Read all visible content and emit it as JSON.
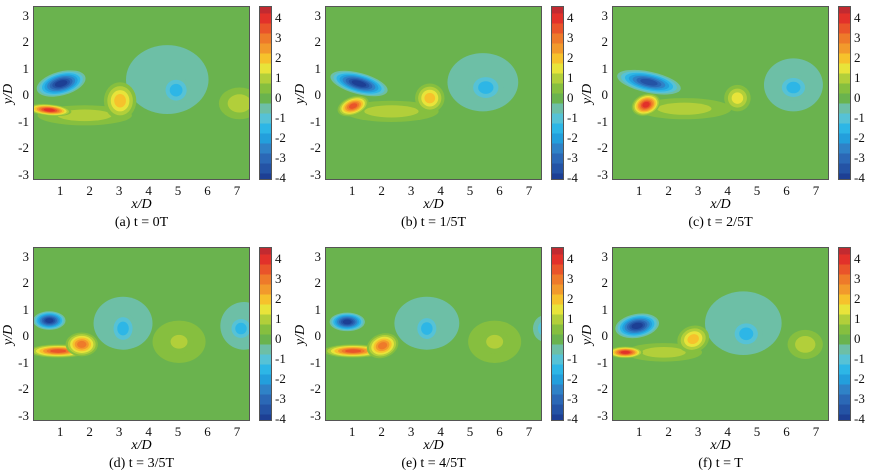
{
  "chart_data": [
    {
      "type": "heatmap",
      "caption": "(a) t = 0T",
      "xlabel": "x/D",
      "ylabel": "y/D",
      "vortices": [
        {
          "x": 4.6,
          "y": 0.6,
          "rx": 1.4,
          "ry": 1.3,
          "peak": -0.5,
          "rot": 0
        },
        {
          "x": 1.8,
          "y": -0.75,
          "rx": 1.6,
          "ry": 0.38,
          "peak": 1,
          "rot": 0
        },
        {
          "x": 1.0,
          "y": 0.45,
          "rx": 0.85,
          "ry": 0.45,
          "peak": -4,
          "rot": 15
        },
        {
          "x": 0.6,
          "y": -0.55,
          "rx": 0.75,
          "ry": 0.22,
          "peak": 4,
          "rot": -5
        },
        {
          "x": 3.0,
          "y": -0.2,
          "rx": 0.55,
          "ry": 0.7,
          "peak": 2,
          "rot": 0
        },
        {
          "x": 4.9,
          "y": 0.2,
          "rx": 0.5,
          "ry": 0.55,
          "peak": -1.5,
          "rot": 0
        },
        {
          "x": 7.05,
          "y": -0.3,
          "rx": 0.7,
          "ry": 0.6,
          "peak": 1,
          "rot": 0
        }
      ]
    },
    {
      "type": "heatmap",
      "caption": "(b) t = 1/5T",
      "xlabel": "x/D",
      "ylabel": "y/D",
      "vortices": [
        {
          "x": 5.4,
          "y": 0.5,
          "rx": 1.2,
          "ry": 1.1,
          "peak": -0.5,
          "rot": 0
        },
        {
          "x": 2.3,
          "y": -0.6,
          "rx": 1.6,
          "ry": 0.4,
          "peak": 1,
          "rot": 0
        },
        {
          "x": 1.2,
          "y": 0.45,
          "rx": 1.0,
          "ry": 0.4,
          "peak": -4,
          "rot": -15
        },
        {
          "x": 1.0,
          "y": -0.4,
          "rx": 0.55,
          "ry": 0.35,
          "peak": 3.5,
          "rot": 20
        },
        {
          "x": 3.6,
          "y": -0.1,
          "rx": 0.5,
          "ry": 0.55,
          "peak": 2,
          "rot": 0
        },
        {
          "x": 5.5,
          "y": 0.3,
          "rx": 0.6,
          "ry": 0.55,
          "peak": -1.5,
          "rot": 0
        }
      ]
    },
    {
      "type": "heatmap",
      "caption": "(c) t = 2/5T",
      "xlabel": "x/D",
      "ylabel": "y/D",
      "vortices": [
        {
          "x": 6.2,
          "y": 0.4,
          "rx": 1.0,
          "ry": 1.0,
          "peak": -0.5,
          "rot": 0
        },
        {
          "x": 2.5,
          "y": -0.5,
          "rx": 1.6,
          "ry": 0.4,
          "peak": 1,
          "rot": 0
        },
        {
          "x": 1.3,
          "y": 0.5,
          "rx": 1.1,
          "ry": 0.4,
          "peak": -3.5,
          "rot": -12
        },
        {
          "x": 1.2,
          "y": -0.35,
          "rx": 0.5,
          "ry": 0.4,
          "peak": 4,
          "rot": 20
        },
        {
          "x": 4.3,
          "y": -0.1,
          "rx": 0.45,
          "ry": 0.5,
          "peak": 1.5,
          "rot": 0
        },
        {
          "x": 6.2,
          "y": 0.3,
          "rx": 0.55,
          "ry": 0.5,
          "peak": -1.5,
          "rot": 0
        }
      ]
    },
    {
      "type": "heatmap",
      "caption": "(d) t = 3/5T",
      "xlabel": "x/D",
      "ylabel": "y/D",
      "vortices": [
        {
          "x": 3.1,
          "y": 0.5,
          "rx": 1.0,
          "ry": 1.0,
          "peak": -0.5,
          "rot": 0
        },
        {
          "x": 5.0,
          "y": -0.2,
          "rx": 0.9,
          "ry": 0.8,
          "peak": 0.5,
          "rot": 0
        },
        {
          "x": 7.2,
          "y": 0.4,
          "rx": 0.8,
          "ry": 0.9,
          "peak": -0.5,
          "rot": 0
        },
        {
          "x": 0.6,
          "y": 0.6,
          "rx": 0.55,
          "ry": 0.35,
          "peak": -4,
          "rot": 0
        },
        {
          "x": 0.9,
          "y": -0.55,
          "rx": 1.0,
          "ry": 0.25,
          "peak": 3.5,
          "rot": 0
        },
        {
          "x": 1.7,
          "y": -0.3,
          "rx": 0.55,
          "ry": 0.45,
          "peak": 3,
          "rot": 0
        },
        {
          "x": 3.1,
          "y": 0.3,
          "rx": 0.45,
          "ry": 0.6,
          "peak": -1.5,
          "rot": 0
        },
        {
          "x": 5.0,
          "y": -0.2,
          "rx": 0.5,
          "ry": 0.45,
          "peak": 1,
          "rot": 0
        },
        {
          "x": 7.1,
          "y": 0.3,
          "rx": 0.45,
          "ry": 0.5,
          "peak": -1.5,
          "rot": 0
        }
      ]
    },
    {
      "type": "heatmap",
      "caption": "(e) t = 4/5T",
      "xlabel": "x/D",
      "ylabel": "y/D",
      "vortices": [
        {
          "x": 3.5,
          "y": 0.5,
          "rx": 1.1,
          "ry": 1.0,
          "peak": -0.5,
          "rot": 0
        },
        {
          "x": 5.8,
          "y": -0.2,
          "rx": 0.9,
          "ry": 0.8,
          "peak": 0.5,
          "rot": 0
        },
        {
          "x": 0.8,
          "y": 0.55,
          "rx": 0.6,
          "ry": 0.35,
          "peak": -4,
          "rot": 0
        },
        {
          "x": 1.0,
          "y": -0.55,
          "rx": 1.0,
          "ry": 0.25,
          "peak": 3.5,
          "rot": 0
        },
        {
          "x": 2.0,
          "y": -0.35,
          "rx": 0.55,
          "ry": 0.45,
          "peak": 3,
          "rot": 20
        },
        {
          "x": 3.5,
          "y": 0.3,
          "rx": 0.45,
          "ry": 0.55,
          "peak": -1.5,
          "rot": 0
        },
        {
          "x": 5.8,
          "y": -0.2,
          "rx": 0.5,
          "ry": 0.45,
          "peak": 1,
          "rot": 0
        },
        {
          "x": 7.5,
          "y": 0.3,
          "rx": 0.4,
          "ry": 0.5,
          "peak": -1,
          "rot": 0
        }
      ]
    },
    {
      "type": "heatmap",
      "caption": "(f) t = T",
      "xlabel": "x/D",
      "ylabel": "y/D",
      "vortices": [
        {
          "x": 4.5,
          "y": 0.5,
          "rx": 1.3,
          "ry": 1.2,
          "peak": -0.5,
          "rot": 0
        },
        {
          "x": 1.8,
          "y": -0.6,
          "rx": 1.3,
          "ry": 0.35,
          "peak": 1,
          "rot": 0
        },
        {
          "x": 0.9,
          "y": 0.4,
          "rx": 0.75,
          "ry": 0.45,
          "peak": -4,
          "rot": 10
        },
        {
          "x": 0.5,
          "y": -0.6,
          "rx": 0.6,
          "ry": 0.22,
          "peak": 4,
          "rot": 0
        },
        {
          "x": 2.8,
          "y": -0.1,
          "rx": 0.55,
          "ry": 0.5,
          "peak": 2,
          "rot": 20
        },
        {
          "x": 4.6,
          "y": 0.1,
          "rx": 0.55,
          "ry": 0.55,
          "peak": -1.5,
          "rot": 0
        },
        {
          "x": 6.6,
          "y": -0.3,
          "rx": 0.6,
          "ry": 0.55,
          "peak": 1,
          "rot": 0
        }
      ]
    }
  ],
  "axes": {
    "xlim": [
      0.08,
      7.44
    ],
    "ylim": [
      -3.23,
      3.34
    ],
    "clim": [
      -4.15,
      4.55
    ],
    "xticks": [
      "1",
      "2",
      "3",
      "4",
      "5",
      "6",
      "7"
    ],
    "yticks": [
      "3",
      "2",
      "1",
      "0",
      "-1",
      "-2",
      "-3"
    ],
    "cticks": [
      "4",
      "3",
      "2",
      "1",
      "0",
      "-1",
      "-2",
      "-3",
      "-4"
    ]
  },
  "colors": {
    "levels": [
      -4,
      -3.5,
      -3,
      -2.5,
      -2,
      -1.5,
      -1,
      -0.5,
      0,
      0.5,
      1,
      1.5,
      2,
      2.5,
      3,
      3.5,
      4,
      4.5
    ],
    "map": [
      "#1d3f94",
      "#2453a5",
      "#2b68b6",
      "#2f82c7",
      "#239fdc",
      "#2db6e6",
      "#56c2d6",
      "#6dbfa6",
      "#6ab34e",
      "#86bf3f",
      "#b2cf3a",
      "#e8e43a",
      "#f6c22c",
      "#f29a2c",
      "#ee7a2a",
      "#e9542a",
      "#e2312a",
      "#c22a30"
    ]
  }
}
